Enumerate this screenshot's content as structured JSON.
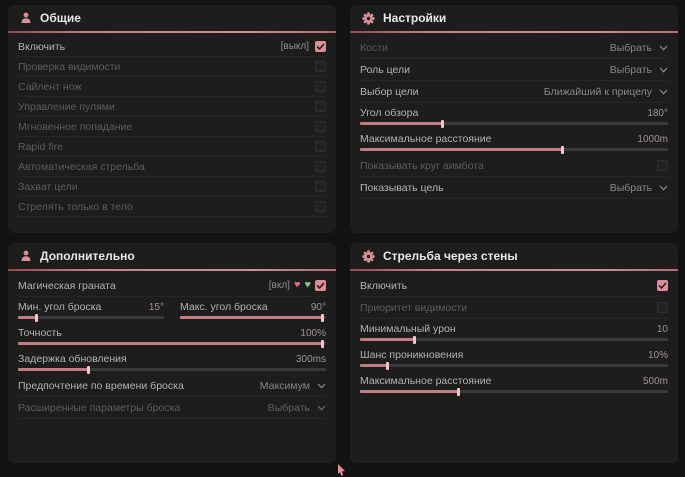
{
  "colors": {
    "accent": "#d98f99",
    "panel_bg": "#1d1d1d",
    "page_bg": "#131313"
  },
  "general": {
    "title": "Общие",
    "rows": [
      {
        "label": "Включить",
        "state": "[выкл]",
        "checked": true
      },
      {
        "label": "Проверка видимости",
        "checked": false
      },
      {
        "label": "Сайлент нож",
        "checked": false
      },
      {
        "label": "Управление пулями",
        "checked": false
      },
      {
        "label": "Мгновенное попадание",
        "checked": false
      },
      {
        "label": "Rapid fire",
        "checked": false
      },
      {
        "label": "Автоматическая стрельба",
        "checked": false
      },
      {
        "label": "Захват цели",
        "checked": false
      },
      {
        "label": "Стрелять только в тело",
        "checked": false
      }
    ]
  },
  "settings": {
    "title": "Настройки",
    "bones": {
      "label": "Кости",
      "value": "Выбрать"
    },
    "target_role": {
      "label": "Роль цели",
      "value": "Выбрать"
    },
    "target_choice": {
      "label": "Выбор цели",
      "value": "Ближайший к прицелу"
    },
    "fov": {
      "label": "Угол обзора",
      "value": "180°",
      "percent": 27
    },
    "max_distance": {
      "label": "Максимальное расстояние",
      "value": "1000m",
      "percent": 66
    },
    "show_circle": {
      "label": "Показывать круг аимбота",
      "checked": false
    },
    "show_target": {
      "label": "Показывать цель",
      "value": "Выбрать"
    }
  },
  "additional": {
    "title": "Дополнительно",
    "magic_grenade": {
      "label": "Магическая граната",
      "state": "[вкл]",
      "checked": true
    },
    "min_throw_angle": {
      "label": "Мин. угол броска",
      "value": "15°",
      "percent": 13
    },
    "max_throw_angle": {
      "label": "Макс. угол броска",
      "value": "90°",
      "percent": 98
    },
    "accuracy": {
      "label": "Точность",
      "value": "100%",
      "percent": 99
    },
    "update_delay": {
      "label": "Задержка обновления",
      "value": "300ms",
      "percent": 23
    },
    "throw_time_pref": {
      "label": "Предпочтение по времени броска",
      "value": "Максимум"
    },
    "advanced_params": {
      "label": "Расширенные параметры броска",
      "value": "Выбрать"
    }
  },
  "wallbang": {
    "title": "Стрельба через стены",
    "enable": {
      "label": "Включить",
      "checked": true
    },
    "visibility_priority": {
      "label": "Приоритет видимости",
      "checked": false
    },
    "min_damage": {
      "label": "Минимальный урон",
      "value": "10",
      "percent": 18
    },
    "penetration_chance": {
      "label": "Шанс проникновения",
      "value": "10%",
      "percent": 9
    },
    "max_distance": {
      "label": "Максимальное расстояние",
      "value": "500m",
      "percent": 32
    }
  }
}
